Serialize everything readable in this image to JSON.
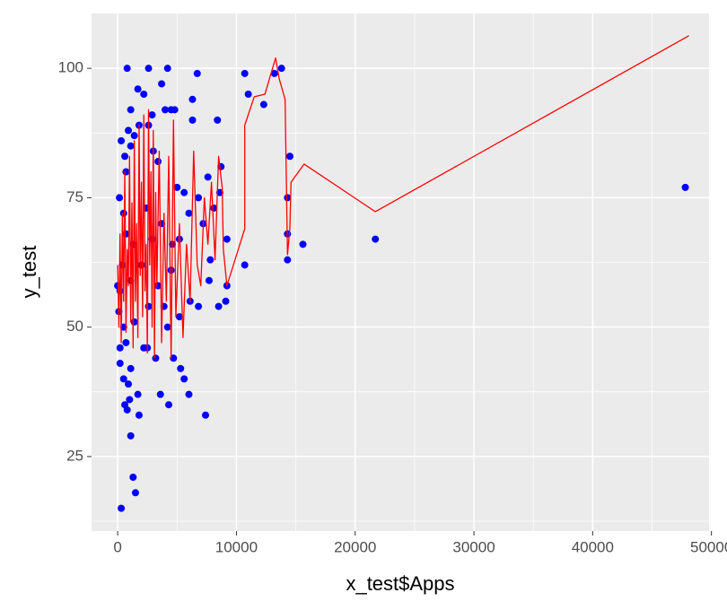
{
  "chart_data": {
    "type": "scatter",
    "x_label": "x_test$Apps",
    "y_label": "y_test",
    "xlim": [
      -2200,
      49800
    ],
    "ylim": [
      10.6,
      110.6
    ],
    "xticks": [
      0,
      10000,
      20000,
      30000,
      40000,
      50000
    ],
    "yticks": [
      25,
      50,
      75,
      100
    ],
    "grid": true,
    "series": [
      {
        "type": "scatter",
        "color": "#0000ff",
        "x": [
          300,
          150,
          300,
          800,
          2600,
          4200,
          6700,
          10700,
          13800,
          13200,
          11000,
          12300,
          8400,
          6300,
          6300,
          3700,
          1700,
          2200,
          14500,
          7600,
          8700,
          8600,
          5600,
          6800,
          14300,
          8100,
          6000,
          7200,
          14300,
          15600,
          21700,
          47800,
          9200,
          7800,
          14300,
          10700,
          7700,
          9200,
          9100,
          8500,
          6800,
          6100,
          5200,
          4200,
          4700,
          3200,
          5300,
          5600,
          6000,
          3600,
          4300,
          7400,
          1800,
          1700,
          1000,
          600,
          800,
          500,
          900,
          1100,
          1300,
          1500,
          700,
          1100,
          2200,
          2500,
          100,
          200,
          0,
          400,
          700,
          500,
          700,
          600,
          900,
          1400,
          1100,
          1800,
          2900,
          2600,
          3000,
          4800,
          4500,
          3400,
          3700,
          2400,
          1300,
          2000,
          1100,
          2600,
          3400,
          3900,
          1400,
          500,
          200,
          200,
          4500,
          4600,
          5000,
          4000,
          1100,
          2900,
          5200
        ],
        "values": [
          15,
          75,
          86,
          100,
          100,
          100,
          99,
          99,
          100,
          99,
          95,
          93,
          90,
          90,
          94,
          97,
          96,
          95,
          83,
          79,
          81,
          76,
          76,
          75,
          75,
          73,
          72,
          70,
          68,
          66,
          67,
          77,
          67,
          63,
          63,
          62,
          59,
          58,
          55,
          54,
          54,
          55,
          52,
          50,
          44,
          44,
          42,
          40,
          37,
          37,
          35,
          33,
          33,
          37,
          36,
          35,
          34,
          40,
          39,
          29,
          21,
          18,
          47,
          42,
          46,
          46,
          53,
          57,
          58,
          62,
          68,
          72,
          80,
          83,
          88,
          87,
          85,
          89,
          91,
          89,
          84,
          92,
          92,
          82,
          70,
          73,
          66,
          62,
          59,
          54,
          58,
          54,
          51,
          50,
          46,
          43,
          61,
          66,
          77,
          92,
          92,
          67,
          67
        ]
      },
      {
        "type": "line",
        "color": "#ff0000",
        "x": [
          0,
          100,
          200,
          300,
          400,
          500,
          600,
          700,
          800,
          900,
          1000,
          1100,
          1200,
          1300,
          1400,
          1500,
          1600,
          1700,
          1800,
          1900,
          2000,
          2100,
          2200,
          2300,
          2400,
          2500,
          2600,
          2700,
          2800,
          2900,
          3000,
          3100,
          3200,
          3300,
          3500,
          3700,
          3900,
          4100,
          4300,
          4500,
          4700,
          4900,
          5200,
          5500,
          5800,
          6100,
          6400,
          6700,
          7000,
          7300,
          7600,
          7900,
          8200,
          8500,
          8800,
          8900,
          9200,
          10700,
          10700,
          11500,
          12400,
          13300,
          13600,
          14100,
          14300,
          14500,
          14600,
          15700,
          21700,
          48100
        ],
        "values": [
          62,
          50,
          68,
          47,
          72,
          55,
          80,
          49,
          65,
          58,
          83,
          51,
          74,
          46,
          86,
          55,
          70,
          48,
          89,
          60,
          78,
          52,
          91,
          57,
          66,
          45,
          92,
          62,
          80,
          50,
          88,
          44,
          76,
          58,
          84,
          47,
          72,
          55,
          83,
          44,
          90,
          52,
          70,
          48,
          66,
          55,
          84,
          62,
          58,
          75,
          66,
          78,
          63,
          83,
          77,
          65,
          58,
          69,
          89,
          94.5,
          95,
          102,
          98,
          94,
          64,
          69,
          78,
          81.5,
          72.3,
          106.3
        ]
      }
    ]
  }
}
